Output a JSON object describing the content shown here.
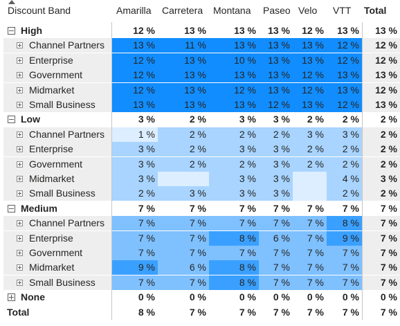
{
  "header": {
    "row_label": "Discount Band",
    "columns": [
      "Amarilla",
      "Carretera",
      "Montana",
      "Paseo",
      "Velo",
      "VTT"
    ],
    "total_label": "Total"
  },
  "colors": {
    "band5": "#118dff",
    "band4": "#3aa0ff",
    "band3": "#7fc0ff",
    "band2": "#a8d4ff",
    "band1": "#dceeff",
    "stripe": "#eeeeee",
    "text": "#252423"
  },
  "groups": [
    {
      "label": "High",
      "expanded": true,
      "values": [
        "12 %",
        "13 %",
        "13 %",
        "13 %",
        "12 %",
        "13 %"
      ],
      "total": "13 %",
      "children": [
        {
          "label": "Channel Partners",
          "values": [
            "13 %",
            "11 %",
            "13 %",
            "13 %",
            "13 %",
            "12 %"
          ],
          "total": "12 %",
          "shades": [
            5,
            5,
            5,
            5,
            5,
            5
          ]
        },
        {
          "label": "Enterprise",
          "values": [
            "12 %",
            "13 %",
            "10 %",
            "13 %",
            "13 %",
            "12 %"
          ],
          "total": "12 %",
          "shades": [
            5,
            5,
            5,
            5,
            5,
            5
          ]
        },
        {
          "label": "Government",
          "values": [
            "12 %",
            "13 %",
            "13 %",
            "13 %",
            "12 %",
            "13 %"
          ],
          "total": "13 %",
          "shades": [
            5,
            5,
            5,
            5,
            5,
            5
          ]
        },
        {
          "label": "Midmarket",
          "values": [
            "12 %",
            "13 %",
            "12 %",
            "13 %",
            "12 %",
            "13 %"
          ],
          "total": "12 %",
          "shades": [
            5,
            5,
            5,
            5,
            5,
            5
          ]
        },
        {
          "label": "Small Business",
          "values": [
            "13 %",
            "13 %",
            "13 %",
            "12 %",
            "13 %",
            "12 %"
          ],
          "total": "13 %",
          "shades": [
            5,
            5,
            5,
            5,
            5,
            5
          ]
        }
      ]
    },
    {
      "label": "Low",
      "expanded": true,
      "values": [
        "3 %",
        "2 %",
        "3 %",
        "3 %",
        "2 %",
        "2 %"
      ],
      "total": "2 %",
      "children": [
        {
          "label": "Channel Partners",
          "values": [
            "1 %",
            "2 %",
            "2 %",
            "2 %",
            "3 %",
            "3 %"
          ],
          "total": "2 %",
          "shades": [
            1,
            2,
            2,
            2,
            2,
            2
          ]
        },
        {
          "label": "Enterprise",
          "values": [
            "3 %",
            "2 %",
            "3 %",
            "3 %",
            "2 %",
            "2 %"
          ],
          "total": "2 %",
          "shades": [
            2,
            2,
            2,
            2,
            2,
            2
          ]
        },
        {
          "label": "Government",
          "values": [
            "3 %",
            "2 %",
            "2 %",
            "3 %",
            "2 %",
            "2 %"
          ],
          "total": "2 %",
          "shades": [
            2,
            2,
            2,
            2,
            2,
            2
          ]
        },
        {
          "label": "Midmarket",
          "values": [
            "3 %",
            "",
            "3 %",
            "3 %",
            "",
            "4 %"
          ],
          "total": "3 %",
          "shades": [
            2,
            1,
            2,
            2,
            1,
            2
          ]
        },
        {
          "label": "Small Business",
          "values": [
            "2 %",
            "3 %",
            "3 %",
            "3 %",
            "",
            "2 %"
          ],
          "total": "2 %",
          "shades": [
            2,
            2,
            2,
            2,
            1,
            2
          ]
        }
      ]
    },
    {
      "label": "Medium",
      "expanded": true,
      "values": [
        "7 %",
        "7 %",
        "7 %",
        "7 %",
        "7 %",
        "7 %"
      ],
      "total": "7 %",
      "children": [
        {
          "label": "Channel Partners",
          "values": [
            "7 %",
            "7 %",
            "7 %",
            "7 %",
            "7 %",
            "8 %"
          ],
          "total": "7 %",
          "shades": [
            3,
            3,
            3,
            3,
            3,
            4
          ]
        },
        {
          "label": "Enterprise",
          "values": [
            "7 %",
            "7 %",
            "8 %",
            "6 %",
            "7 %",
            "9 %"
          ],
          "total": "7 %",
          "shades": [
            3,
            3,
            4,
            3,
            3,
            4
          ]
        },
        {
          "label": "Government",
          "values": [
            "7 %",
            "7 %",
            "7 %",
            "7 %",
            "7 %",
            "7 %"
          ],
          "total": "7 %",
          "shades": [
            3,
            3,
            3,
            3,
            3,
            3
          ]
        },
        {
          "label": "Midmarket",
          "values": [
            "9 %",
            "6 %",
            "8 %",
            "7 %",
            "7 %",
            "7 %"
          ],
          "total": "7 %",
          "shades": [
            4,
            3,
            4,
            3,
            3,
            3
          ]
        },
        {
          "label": "Small Business",
          "values": [
            "7 %",
            "7 %",
            "8 %",
            "7 %",
            "7 %",
            "7 %"
          ],
          "total": "7 %",
          "shades": [
            3,
            3,
            4,
            3,
            3,
            3
          ]
        }
      ]
    },
    {
      "label": "None",
      "expanded": false,
      "values": [
        "0 %",
        "0 %",
        "0 %",
        "0 %",
        "0 %",
        "0 %"
      ],
      "total": "0 %",
      "children": []
    }
  ],
  "total_row": {
    "label": "Total",
    "values": [
      "8 %",
      "7 %",
      "7 %",
      "7 %",
      "7 %",
      "7 %"
    ],
    "total": "7 %"
  }
}
